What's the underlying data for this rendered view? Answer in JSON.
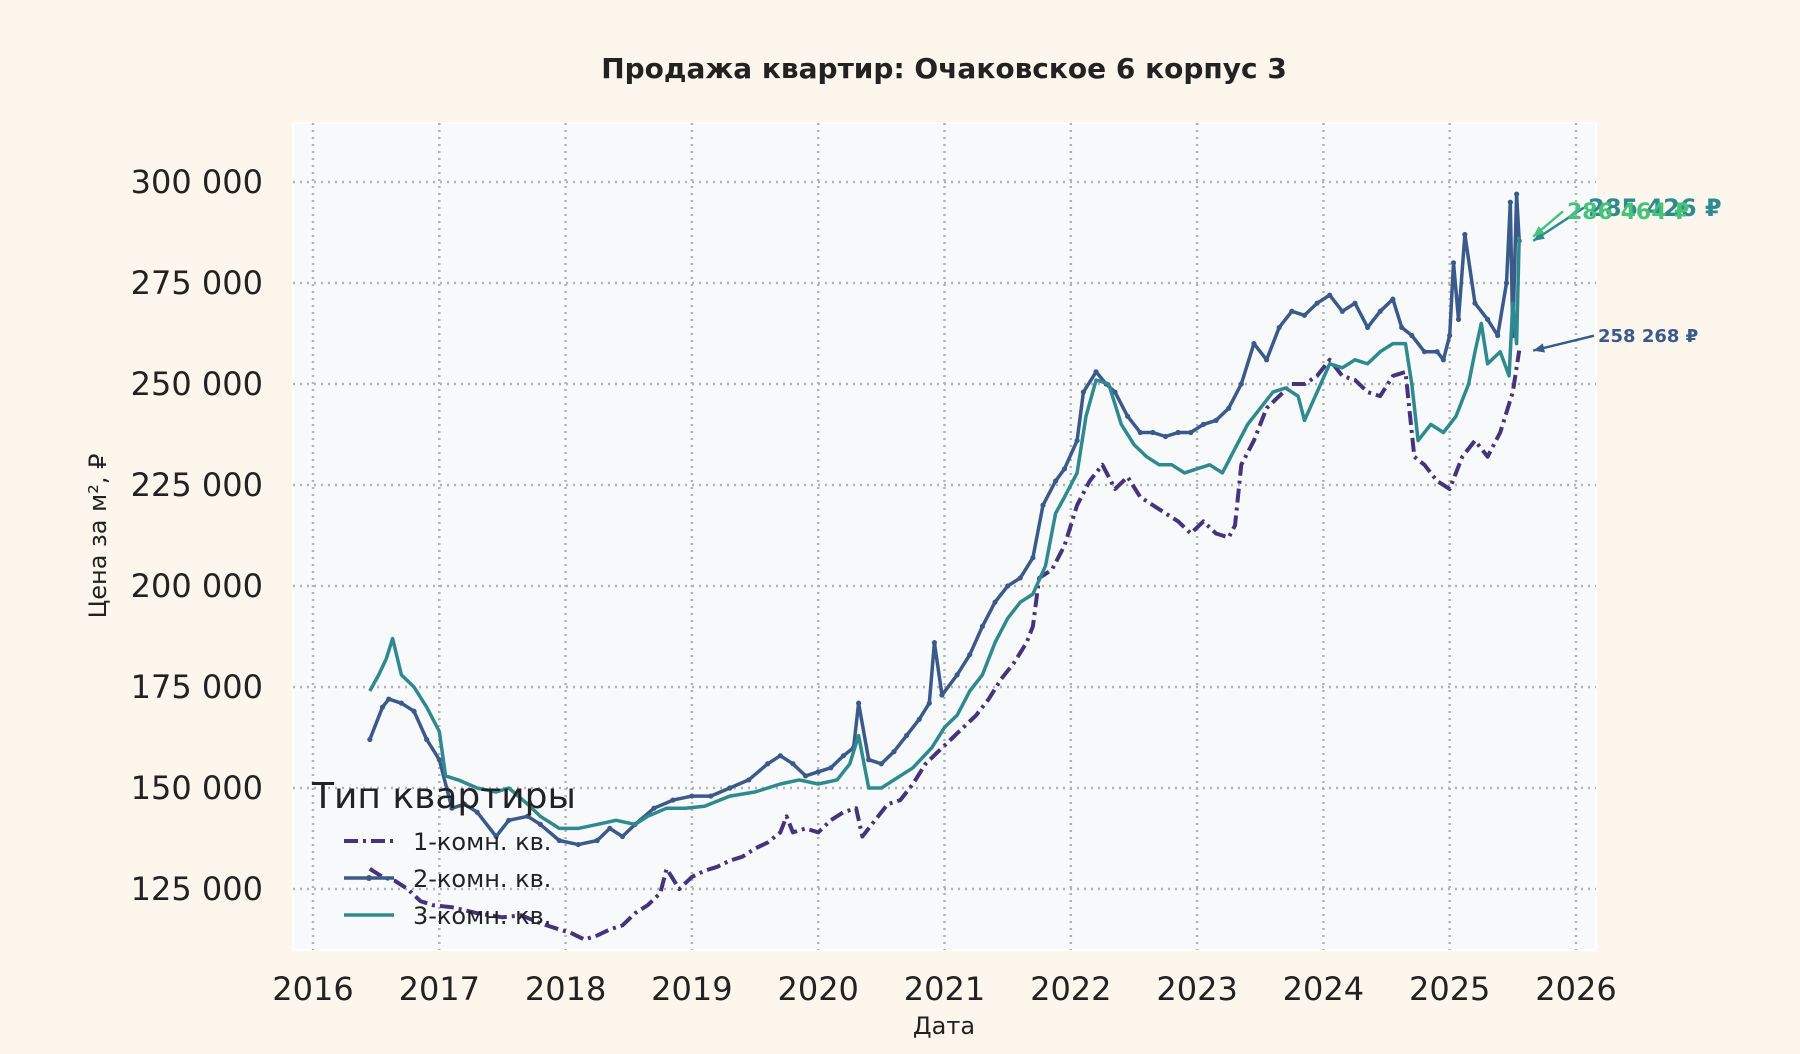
{
  "chart_data": {
    "type": "line",
    "title": "Продажа квартир: Очаковское 6 корпус 3",
    "xlabel": "Дата",
    "ylabel": "Цена за м², ₽",
    "x_ticks": [
      "2016",
      "2017",
      "2018",
      "2019",
      "2020",
      "2021",
      "2022",
      "2023",
      "2024",
      "2025",
      "2026"
    ],
    "y_ticks": [
      "125 000",
      "150 000",
      "175 000",
      "200 000",
      "225 000",
      "250 000",
      "275 000",
      "300 000"
    ],
    "xlim": [
      2016.0,
      2026.0
    ],
    "ylim": [
      103000,
      306000
    ],
    "grid": true,
    "legend_title": "Тип квартиры",
    "legend_position": "lower-left",
    "colors": {
      "background": "#fdf6ec",
      "plot_background": "#f8f9fa",
      "grid": "#b3b3b3",
      "series_1": "#46337e",
      "series_2": "#3b5a8c",
      "series_3": "#2e8a90",
      "label_green": "#48c27a"
    },
    "series": [
      {
        "name": "1-комн. кв.",
        "style": "dashdot",
        "end_label": "258 268 ₽",
        "points": [
          [
            2016.45,
            130000
          ],
          [
            2016.55,
            128000
          ],
          [
            2016.65,
            127000
          ],
          [
            2016.75,
            125000
          ],
          [
            2016.85,
            122000
          ],
          [
            2016.95,
            121000
          ],
          [
            2017.1,
            120500
          ],
          [
            2017.3,
            119000
          ],
          [
            2017.5,
            118000
          ],
          [
            2017.65,
            118500
          ],
          [
            2017.8,
            116500
          ],
          [
            2017.95,
            115000
          ],
          [
            2018.05,
            114000
          ],
          [
            2018.15,
            112500
          ],
          [
            2018.25,
            113500
          ],
          [
            2018.35,
            115000
          ],
          [
            2018.45,
            116000
          ],
          [
            2018.55,
            119000
          ],
          [
            2018.65,
            121000
          ],
          [
            2018.75,
            124000
          ],
          [
            2018.8,
            130000
          ],
          [
            2018.9,
            125000
          ],
          [
            2019.0,
            128000
          ],
          [
            2019.1,
            129500
          ],
          [
            2019.2,
            130500
          ],
          [
            2019.3,
            132000
          ],
          [
            2019.4,
            133000
          ],
          [
            2019.5,
            135000
          ],
          [
            2019.6,
            136500
          ],
          [
            2019.7,
            139000
          ],
          [
            2019.75,
            143000
          ],
          [
            2019.8,
            139000
          ],
          [
            2019.9,
            140000
          ],
          [
            2020.0,
            139000
          ],
          [
            2020.1,
            142000
          ],
          [
            2020.2,
            144000
          ],
          [
            2020.3,
            145000
          ],
          [
            2020.35,
            138000
          ],
          [
            2020.45,
            142000
          ],
          [
            2020.55,
            146000
          ],
          [
            2020.65,
            147000
          ],
          [
            2020.75,
            151000
          ],
          [
            2020.85,
            156000
          ],
          [
            2020.95,
            159000
          ],
          [
            2021.05,
            162000
          ],
          [
            2021.15,
            165000
          ],
          [
            2021.25,
            168000
          ],
          [
            2021.35,
            172000
          ],
          [
            2021.45,
            177000
          ],
          [
            2021.55,
            181000
          ],
          [
            2021.65,
            186000
          ],
          [
            2021.7,
            190000
          ],
          [
            2021.75,
            202000
          ],
          [
            2021.85,
            204000
          ],
          [
            2021.95,
            210000
          ],
          [
            2022.05,
            220000
          ],
          [
            2022.15,
            226000
          ],
          [
            2022.25,
            230000
          ],
          [
            2022.35,
            224000
          ],
          [
            2022.45,
            227000
          ],
          [
            2022.55,
            222000
          ],
          [
            2022.65,
            220000
          ],
          [
            2022.75,
            218000
          ],
          [
            2022.85,
            216000
          ],
          [
            2022.95,
            213000
          ],
          [
            2023.05,
            216000
          ],
          [
            2023.15,
            213000
          ],
          [
            2023.25,
            212000
          ],
          [
            2023.3,
            215000
          ],
          [
            2023.35,
            230000
          ],
          [
            2023.45,
            236000
          ],
          [
            2023.55,
            244000
          ],
          [
            2023.65,
            247000
          ],
          [
            2023.75,
            250000
          ],
          [
            2023.85,
            250000
          ],
          [
            2023.95,
            252000
          ],
          [
            2024.05,
            256000
          ],
          [
            2024.15,
            252000
          ],
          [
            2024.25,
            251000
          ],
          [
            2024.35,
            248000
          ],
          [
            2024.45,
            247000
          ],
          [
            2024.55,
            252000
          ],
          [
            2024.65,
            253000
          ],
          [
            2024.72,
            232000
          ],
          [
            2024.8,
            230000
          ],
          [
            2024.9,
            226000
          ],
          [
            2025.0,
            224000
          ],
          [
            2025.1,
            232000
          ],
          [
            2025.2,
            236000
          ],
          [
            2025.3,
            232000
          ],
          [
            2025.4,
            238000
          ],
          [
            2025.5,
            248000
          ],
          [
            2025.55,
            258268
          ]
        ]
      },
      {
        "name": "2-комн. кв.",
        "style": "solid-dots",
        "end_label": "285 426 ₽",
        "points": [
          [
            2016.45,
            162000
          ],
          [
            2016.55,
            170000
          ],
          [
            2016.6,
            172000
          ],
          [
            2016.7,
            171000
          ],
          [
            2016.8,
            169000
          ],
          [
            2016.9,
            162000
          ],
          [
            2017.0,
            157000
          ],
          [
            2017.1,
            145000
          ],
          [
            2017.2,
            146000
          ],
          [
            2017.3,
            144000
          ],
          [
            2017.45,
            138000
          ],
          [
            2017.55,
            142000
          ],
          [
            2017.7,
            143000
          ],
          [
            2017.8,
            141000
          ],
          [
            2017.95,
            137000
          ],
          [
            2018.1,
            136000
          ],
          [
            2018.25,
            137000
          ],
          [
            2018.35,
            140000
          ],
          [
            2018.45,
            138000
          ],
          [
            2018.55,
            141000
          ],
          [
            2018.7,
            145000
          ],
          [
            2018.85,
            147000
          ],
          [
            2019.0,
            148000
          ],
          [
            2019.15,
            148000
          ],
          [
            2019.3,
            150000
          ],
          [
            2019.45,
            152000
          ],
          [
            2019.6,
            156000
          ],
          [
            2019.7,
            158000
          ],
          [
            2019.8,
            156000
          ],
          [
            2019.9,
            153000
          ],
          [
            2020.0,
            154000
          ],
          [
            2020.1,
            155000
          ],
          [
            2020.2,
            158000
          ],
          [
            2020.28,
            160000
          ],
          [
            2020.32,
            171000
          ],
          [
            2020.4,
            157000
          ],
          [
            2020.5,
            156000
          ],
          [
            2020.6,
            159000
          ],
          [
            2020.7,
            163000
          ],
          [
            2020.8,
            167000
          ],
          [
            2020.88,
            171000
          ],
          [
            2020.92,
            186000
          ],
          [
            2020.98,
            173000
          ],
          [
            2021.1,
            178000
          ],
          [
            2021.2,
            183000
          ],
          [
            2021.3,
            190000
          ],
          [
            2021.4,
            196000
          ],
          [
            2021.5,
            200000
          ],
          [
            2021.6,
            202000
          ],
          [
            2021.7,
            207000
          ],
          [
            2021.78,
            220000
          ],
          [
            2021.88,
            226000
          ],
          [
            2021.95,
            229000
          ],
          [
            2022.05,
            236000
          ],
          [
            2022.1,
            248000
          ],
          [
            2022.2,
            253000
          ],
          [
            2022.28,
            250000
          ],
          [
            2022.35,
            248000
          ],
          [
            2022.45,
            242000
          ],
          [
            2022.55,
            238000
          ],
          [
            2022.65,
            238000
          ],
          [
            2022.75,
            237000
          ],
          [
            2022.85,
            238000
          ],
          [
            2022.95,
            238000
          ],
          [
            2023.05,
            240000
          ],
          [
            2023.15,
            241000
          ],
          [
            2023.25,
            244000
          ],
          [
            2023.35,
            250000
          ],
          [
            2023.45,
            260000
          ],
          [
            2023.55,
            256000
          ],
          [
            2023.65,
            264000
          ],
          [
            2023.75,
            268000
          ],
          [
            2023.85,
            267000
          ],
          [
            2023.95,
            270000
          ],
          [
            2024.05,
            272000
          ],
          [
            2024.15,
            268000
          ],
          [
            2024.25,
            270000
          ],
          [
            2024.35,
            264000
          ],
          [
            2024.45,
            268000
          ],
          [
            2024.55,
            271000
          ],
          [
            2024.62,
            264000
          ],
          [
            2024.7,
            262000
          ],
          [
            2024.8,
            258000
          ],
          [
            2024.9,
            258000
          ],
          [
            2024.95,
            256000
          ],
          [
            2025.0,
            262000
          ],
          [
            2025.03,
            280000
          ],
          [
            2025.07,
            266000
          ],
          [
            2025.12,
            287000
          ],
          [
            2025.2,
            270000
          ],
          [
            2025.3,
            266000
          ],
          [
            2025.38,
            262000
          ],
          [
            2025.45,
            275000
          ],
          [
            2025.48,
            295000
          ],
          [
            2025.5,
            262000
          ],
          [
            2025.53,
            297000
          ],
          [
            2025.55,
            285426
          ]
        ]
      },
      {
        "name": "3-комн. кв.",
        "style": "solid",
        "end_label": "286 464 ₽",
        "points": [
          [
            2016.45,
            174000
          ],
          [
            2016.52,
            178000
          ],
          [
            2016.58,
            182000
          ],
          [
            2016.63,
            187000
          ],
          [
            2016.7,
            178000
          ],
          [
            2016.8,
            175000
          ],
          [
            2016.9,
            170000
          ],
          [
            2017.0,
            164000
          ],
          [
            2017.05,
            153000
          ],
          [
            2017.15,
            152000
          ],
          [
            2017.3,
            150000
          ],
          [
            2017.45,
            149000
          ],
          [
            2017.55,
            150000
          ],
          [
            2017.7,
            146000
          ],
          [
            2017.8,
            143000
          ],
          [
            2017.95,
            140000
          ],
          [
            2018.1,
            140000
          ],
          [
            2018.25,
            141000
          ],
          [
            2018.4,
            142000
          ],
          [
            2018.55,
            141000
          ],
          [
            2018.65,
            143000
          ],
          [
            2018.8,
            145000
          ],
          [
            2018.95,
            145000
          ],
          [
            2019.1,
            145500
          ],
          [
            2019.3,
            148000
          ],
          [
            2019.5,
            149000
          ],
          [
            2019.7,
            151000
          ],
          [
            2019.85,
            152000
          ],
          [
            2020.0,
            151000
          ],
          [
            2020.15,
            152000
          ],
          [
            2020.25,
            156000
          ],
          [
            2020.32,
            163000
          ],
          [
            2020.4,
            150000
          ],
          [
            2020.5,
            150000
          ],
          [
            2020.6,
            152000
          ],
          [
            2020.75,
            155000
          ],
          [
            2020.9,
            160000
          ],
          [
            2021.0,
            165000
          ],
          [
            2021.1,
            168000
          ],
          [
            2021.2,
            174000
          ],
          [
            2021.3,
            178000
          ],
          [
            2021.4,
            186000
          ],
          [
            2021.5,
            192000
          ],
          [
            2021.6,
            196000
          ],
          [
            2021.7,
            198000
          ],
          [
            2021.8,
            205000
          ],
          [
            2021.88,
            218000
          ],
          [
            2021.95,
            222000
          ],
          [
            2022.05,
            228000
          ],
          [
            2022.12,
            242000
          ],
          [
            2022.2,
            251000
          ],
          [
            2022.3,
            250000
          ],
          [
            2022.4,
            240000
          ],
          [
            2022.5,
            235000
          ],
          [
            2022.6,
            232000
          ],
          [
            2022.7,
            230000
          ],
          [
            2022.8,
            230000
          ],
          [
            2022.9,
            228000
          ],
          [
            2023.0,
            229000
          ],
          [
            2023.1,
            230000
          ],
          [
            2023.2,
            228000
          ],
          [
            2023.3,
            234000
          ],
          [
            2023.4,
            240000
          ],
          [
            2023.5,
            244000
          ],
          [
            2023.6,
            248000
          ],
          [
            2023.7,
            249000
          ],
          [
            2023.8,
            247000
          ],
          [
            2023.85,
            241000
          ],
          [
            2023.95,
            248000
          ],
          [
            2024.05,
            255000
          ],
          [
            2024.15,
            254000
          ],
          [
            2024.25,
            256000
          ],
          [
            2024.35,
            255000
          ],
          [
            2024.45,
            258000
          ],
          [
            2024.55,
            260000
          ],
          [
            2024.65,
            260000
          ],
          [
            2024.7,
            250000
          ],
          [
            2024.75,
            236000
          ],
          [
            2024.85,
            240000
          ],
          [
            2024.95,
            238000
          ],
          [
            2025.05,
            242000
          ],
          [
            2025.15,
            250000
          ],
          [
            2025.2,
            258000
          ],
          [
            2025.25,
            265000
          ],
          [
            2025.3,
            255000
          ],
          [
            2025.4,
            258000
          ],
          [
            2025.47,
            252000
          ],
          [
            2025.5,
            270000
          ],
          [
            2025.53,
            260000
          ],
          [
            2025.55,
            286464
          ]
        ]
      }
    ]
  }
}
